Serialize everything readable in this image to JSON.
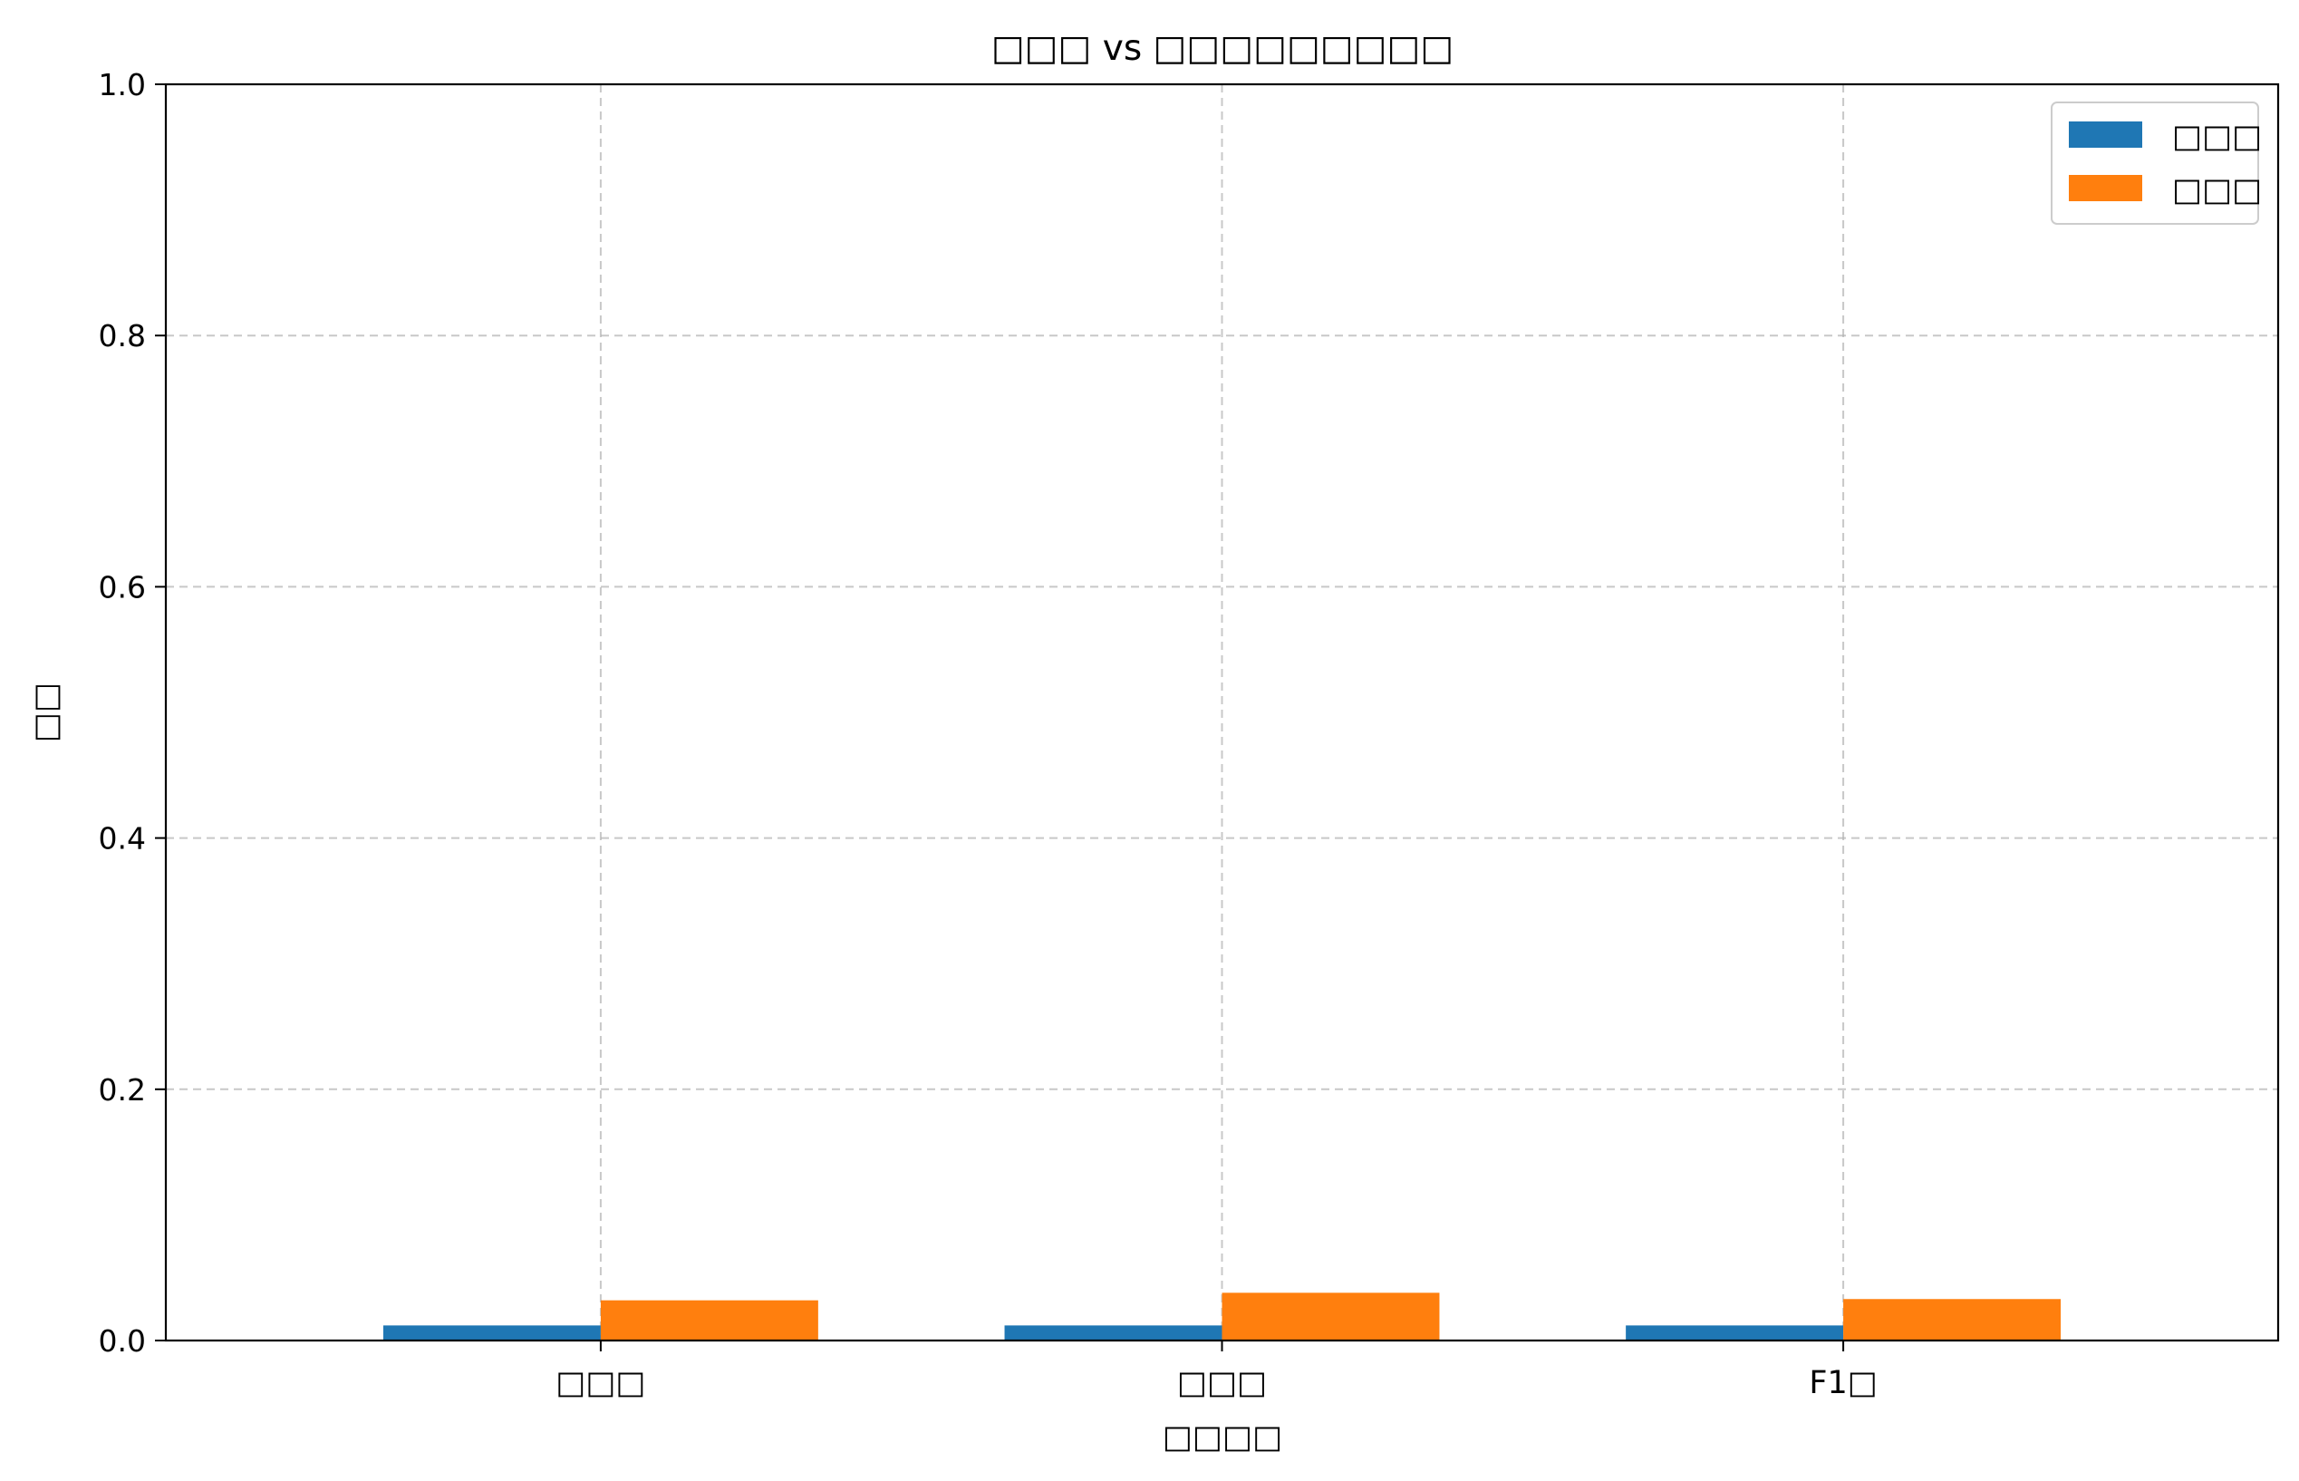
{
  "chart_data": {
    "type": "bar",
    "title": "□□□ vs □□□□□□□□□",
    "xlabel": "□□□□",
    "ylabel": "□□",
    "categories": [
      "□□□",
      "□□□",
      "F1□"
    ],
    "series": [
      {
        "name": "□□□",
        "color": "#1f77b4",
        "values": [
          0.012,
          0.012,
          0.012
        ]
      },
      {
        "name": "□□□",
        "color": "#ff7f0e",
        "values": [
          0.032,
          0.038,
          0.033
        ]
      }
    ],
    "ylim": [
      0,
      1.0
    ],
    "yticks": [
      0.0,
      0.2,
      0.4,
      0.6,
      0.8,
      1.0
    ],
    "ytick_labels": [
      "0.0",
      "0.2",
      "0.4",
      "0.6",
      "0.8",
      "1.0"
    ],
    "grid": true,
    "legend_position": "top-right"
  }
}
